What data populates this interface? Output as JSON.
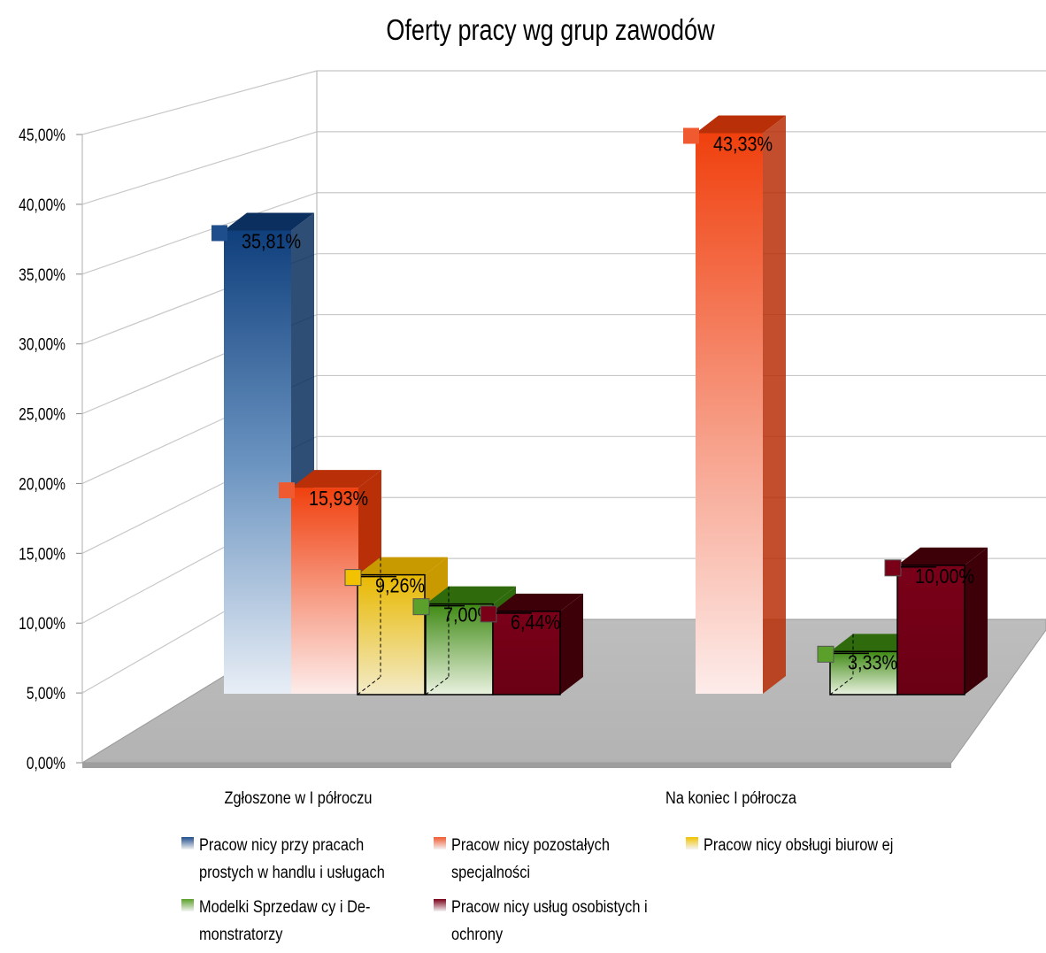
{
  "chart_data": {
    "type": "bar",
    "title": "Oferty pracy wg grup zawodów",
    "categories": [
      "Zgłoszone w  I półroczu",
      "Na koniec I półrocza"
    ],
    "ylim": [
      0,
      45
    ],
    "yticks": [
      "0,00%",
      "5,00%",
      "10,00%",
      "15,00%",
      "20,00%",
      "25,00%",
      "30,00%",
      "35,00%",
      "40,00%",
      "45,00%"
    ],
    "grid": true,
    "legend_position": "bottom",
    "three_d": true,
    "series": [
      {
        "name": "Pracow nicy przy pracach prostych w  handlu i usługach",
        "values": [
          35.81,
          null
        ],
        "labels": [
          "35,81%",
          ""
        ],
        "color": "#1f4e8c"
      },
      {
        "name": "Pracow nicy pozostałych specjalności",
        "values": [
          15.93,
          43.33
        ],
        "labels": [
          "15,93%",
          "43,33%"
        ],
        "color": "#f04a1a"
      },
      {
        "name": "Pracow nicy obsługi biurow ej",
        "values": [
          9.26,
          null
        ],
        "labels": [
          "9,26%",
          ""
        ],
        "color": "#f2c200"
      },
      {
        "name": "Modelki Sprzedaw cy i De- monstratorzy",
        "values": [
          7.0,
          3.33
        ],
        "labels": [
          "7,00%",
          "3,33%"
        ],
        "color": "#4a9a1e"
      },
      {
        "name": "Pracow nicy usług osobistych i ochrony",
        "values": [
          6.44,
          10.0
        ],
        "labels": [
          "6,44%",
          "10,00%"
        ],
        "color": "#7a0018"
      }
    ]
  }
}
